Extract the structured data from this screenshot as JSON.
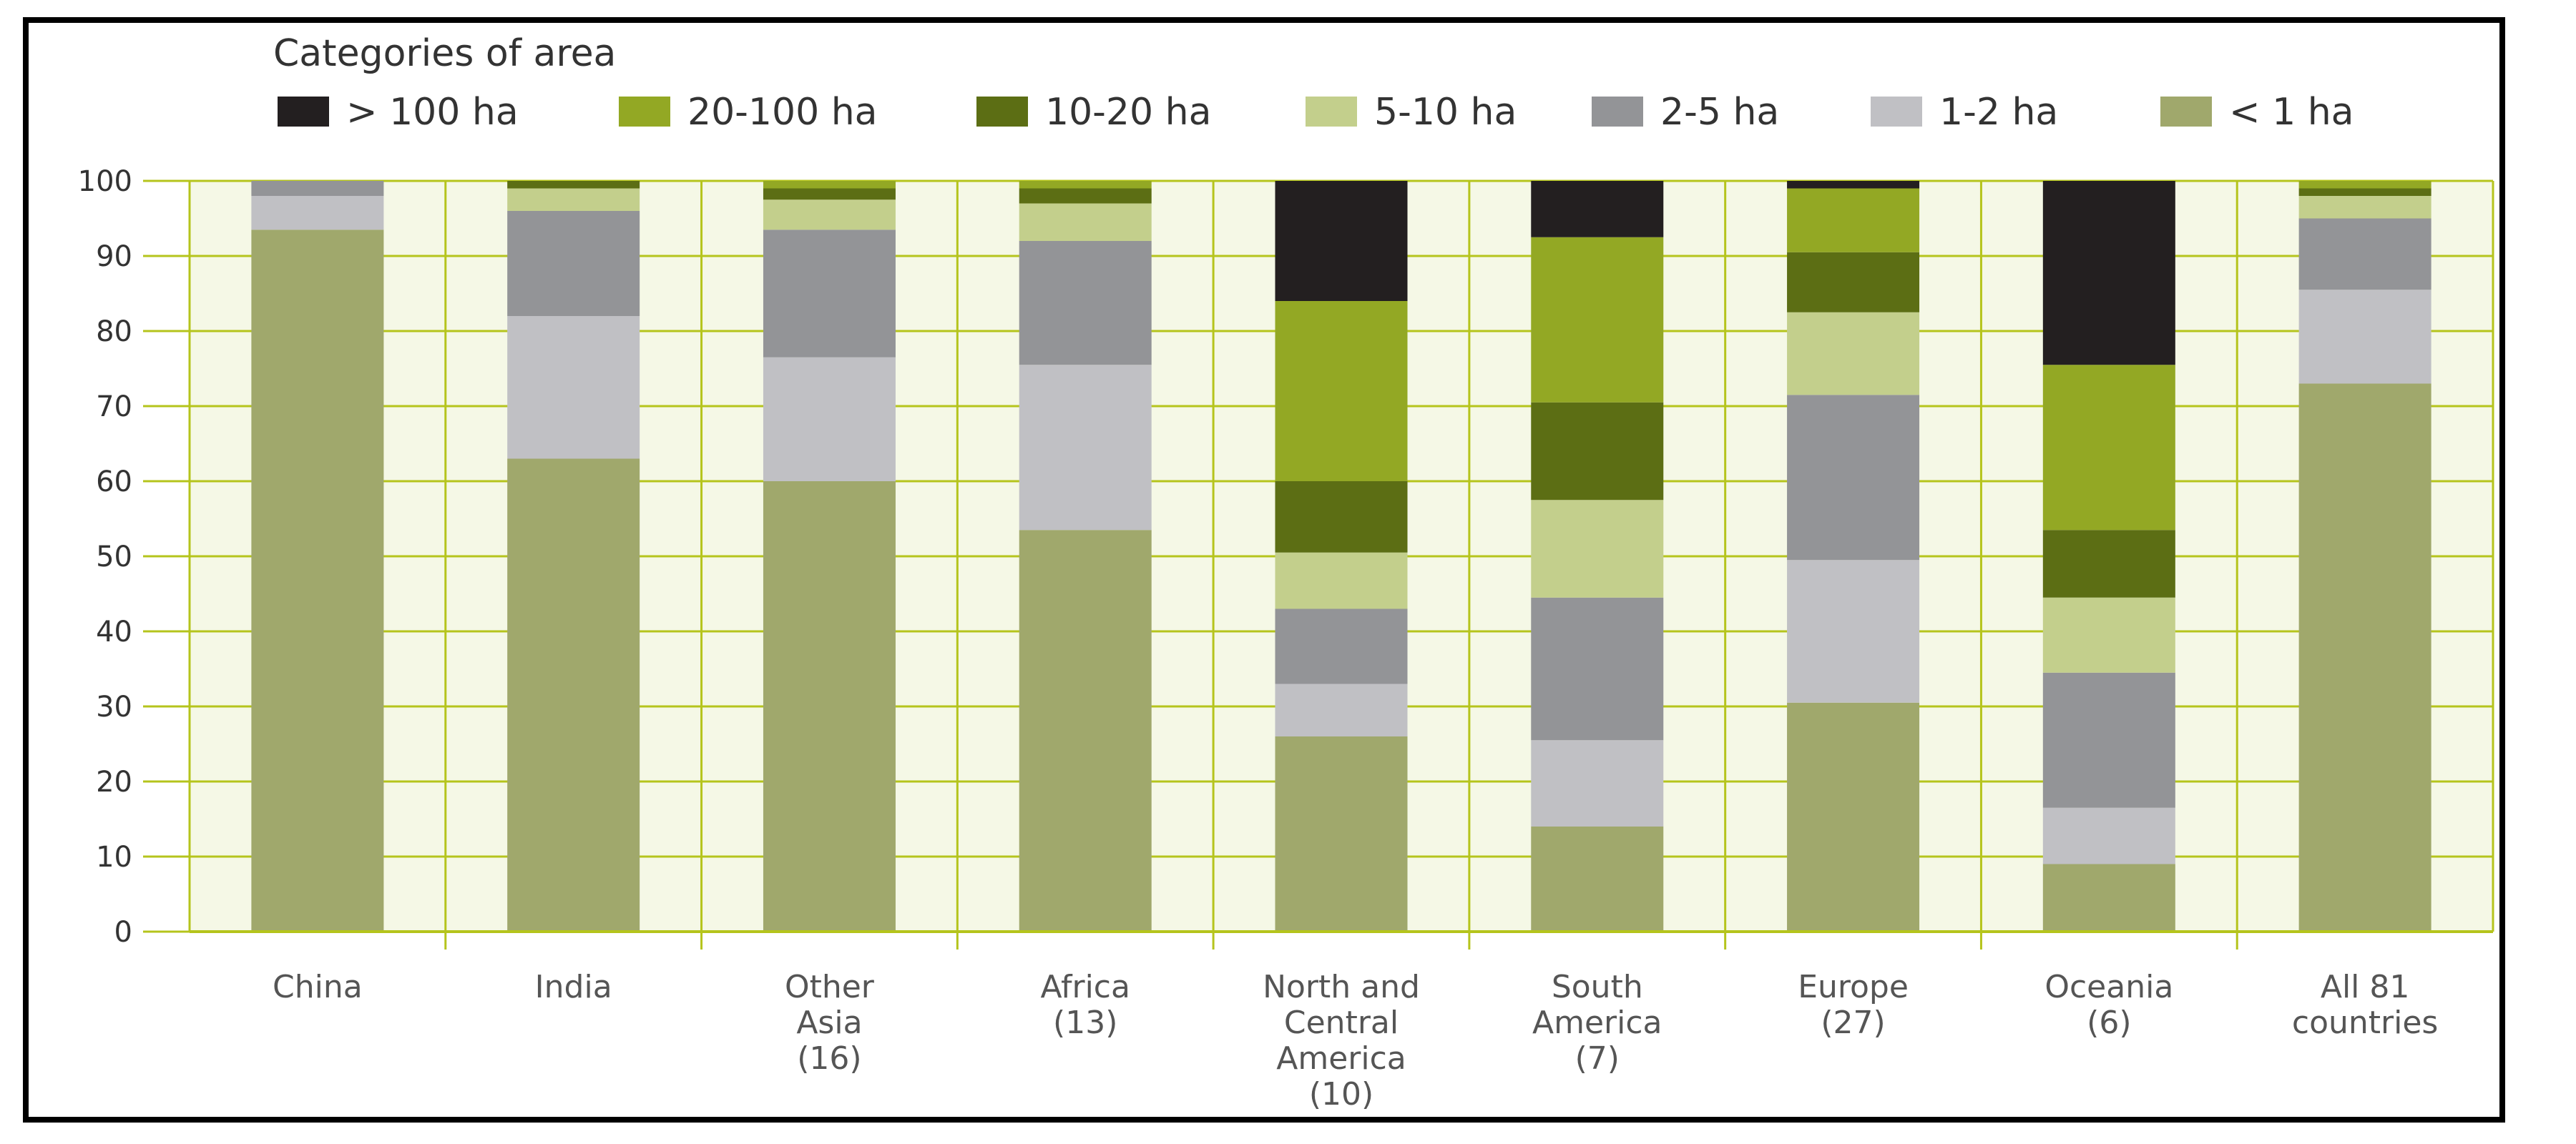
{
  "chart_data": {
    "type": "bar",
    "stacked": true,
    "title": "",
    "legend_title": "Categories of area",
    "xlabel": "",
    "ylabel": "",
    "ylim": [
      0,
      100
    ],
    "yticks": [
      0,
      10,
      20,
      30,
      40,
      50,
      60,
      70,
      80,
      90,
      100
    ],
    "categories": [
      [
        "China"
      ],
      [
        "India"
      ],
      [
        "Other",
        "Asia",
        "(16)"
      ],
      [
        "Africa",
        "(13)"
      ],
      [
        "North and",
        "Central",
        "America",
        "(10)"
      ],
      [
        "South",
        "America",
        "(7)"
      ],
      [
        "Europe",
        "(27)"
      ],
      [
        "Oceania",
        "(6)"
      ],
      [
        "All 81",
        "countries"
      ]
    ],
    "series": [
      {
        "name": "< 1 ha",
        "color": "#a0a86c",
        "values": [
          93.5,
          63,
          60,
          53.5,
          26,
          14,
          30.5,
          9,
          73
        ]
      },
      {
        "name": "1-2 ha",
        "color": "#c0c0c4",
        "values": [
          4.5,
          19,
          16.5,
          22,
          7,
          11.5,
          19,
          7.5,
          12.5
        ]
      },
      {
        "name": "2-5 ha",
        "color": "#939497",
        "values": [
          2,
          14,
          17,
          16.5,
          10,
          19,
          22,
          18,
          9.5
        ]
      },
      {
        "name": "5-10 ha",
        "color": "#c3cf8c",
        "values": [
          0,
          3,
          4,
          5,
          7.5,
          13,
          11,
          10,
          3
        ]
      },
      {
        "name": "10-20 ha",
        "color": "#5c6e14",
        "values": [
          0,
          1,
          1.5,
          2,
          9.5,
          13,
          8,
          9,
          1
        ]
      },
      {
        "name": "20-100 ha",
        "color": "#93a824",
        "values": [
          0,
          0,
          1,
          1,
          24,
          22,
          8.5,
          22,
          1
        ]
      },
      {
        "name": "> 100 ha",
        "color": "#231f20",
        "values": [
          0,
          0,
          0,
          0,
          16,
          7.5,
          1,
          24.5,
          0
        ]
      }
    ],
    "legend_order": [
      "> 100 ha",
      "20-100 ha",
      "10-20 ha",
      "5-10 ha",
      "2-5 ha",
      "1-2 ha",
      "< 1 ha"
    ],
    "grid": true,
    "plot_background": "#f5f8e6",
    "grid_color": "#b5c41c"
  }
}
